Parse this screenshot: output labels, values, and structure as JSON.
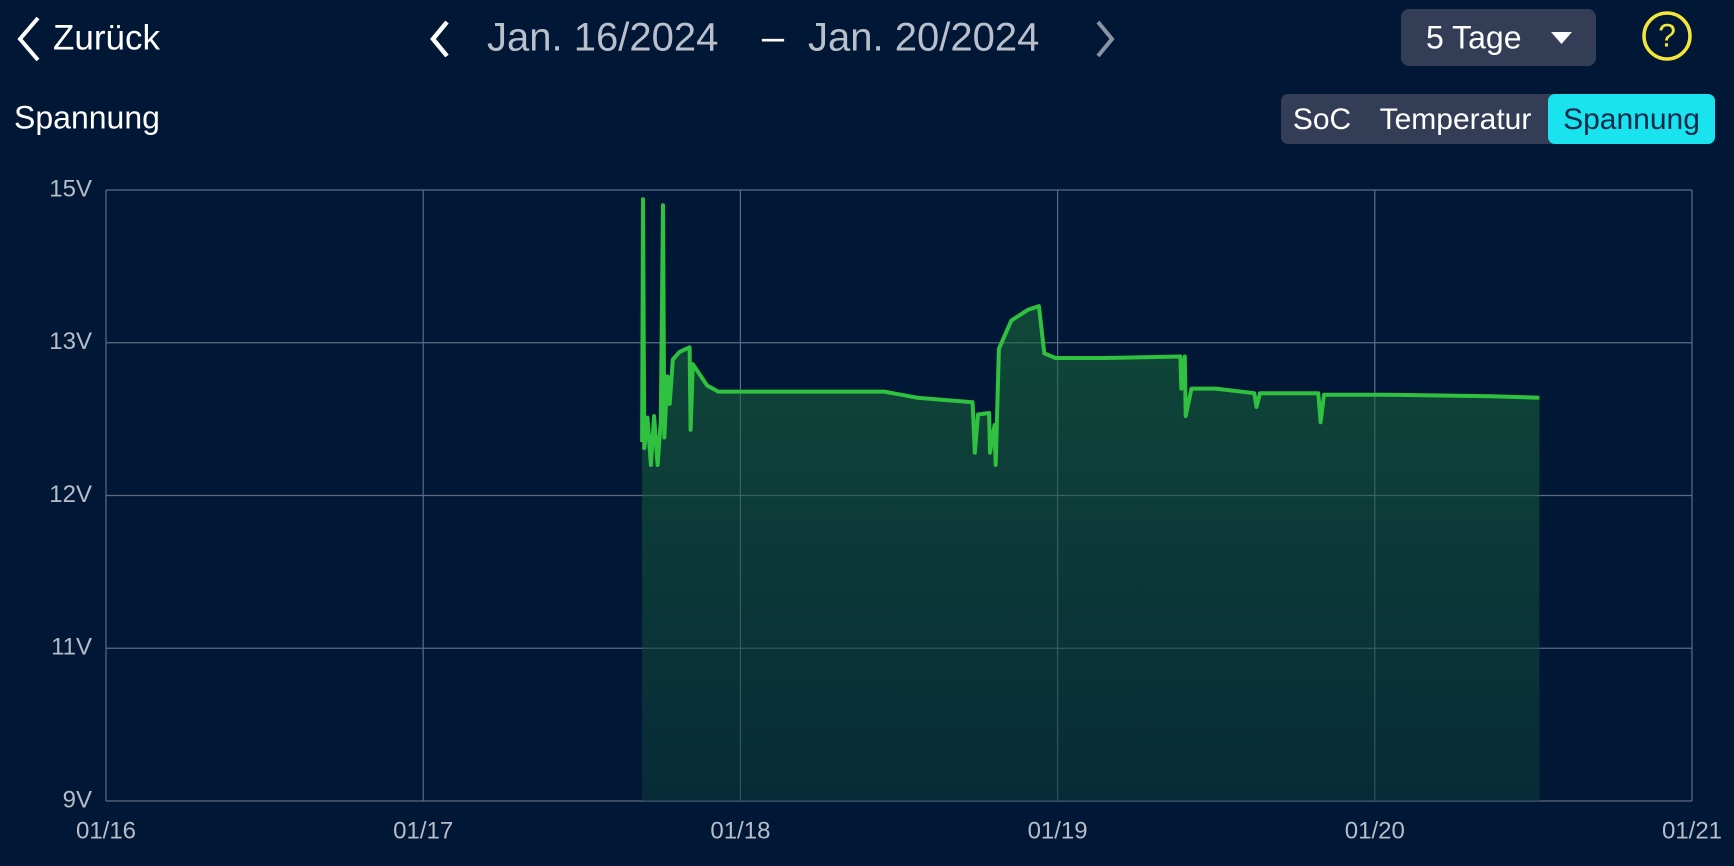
{
  "header": {
    "back": "Zurück",
    "date_from": "Jan. 16/2024",
    "date_separator": "–",
    "date_to": "Jan. 20/2024",
    "range_select": "5 Tage",
    "help": "?"
  },
  "tabs": [
    "SoC",
    "Temperatur",
    "Spannung"
  ],
  "active_tab": 2,
  "chart_data": {
    "type": "area",
    "title": "Spannung",
    "x": [
      17.69,
      17.693,
      17.697,
      17.707,
      17.718,
      17.728,
      17.739,
      17.749,
      17.756,
      17.76,
      17.77,
      17.777,
      17.787,
      17.808,
      17.84,
      17.843,
      17.85,
      17.895,
      17.93,
      18.105,
      18.453,
      18.557,
      18.732,
      18.739,
      18.749,
      18.784,
      18.787,
      18.801,
      18.805,
      18.815,
      18.854,
      18.906,
      18.941,
      18.958,
      18.993,
      19.15,
      19.387,
      19.39,
      19.401,
      19.404,
      19.422,
      19.498,
      19.62,
      19.627,
      19.638,
      19.822,
      19.829,
      19.84,
      20.021,
      20.369,
      20.519
    ],
    "series": [
      {
        "name": "Spannung",
        "color": "#2fc13f",
        "values": [
          12.35,
          14.88,
          12.31,
          12.51,
          12.2,
          12.52,
          12.2,
          12.49,
          14.8,
          12.38,
          12.78,
          12.6,
          12.89,
          12.94,
          12.97,
          12.43,
          12.86,
          12.72,
          12.68,
          12.68,
          12.68,
          12.64,
          12.61,
          12.28,
          12.53,
          12.54,
          12.28,
          12.46,
          12.2,
          12.96,
          13.29,
          13.43,
          13.48,
          12.93,
          12.9,
          12.9,
          12.91,
          12.7,
          12.91,
          12.52,
          12.7,
          12.7,
          12.67,
          12.58,
          12.67,
          12.67,
          12.48,
          12.66,
          12.66,
          12.65,
          12.64
        ]
      }
    ],
    "xlim": [
      16,
      21
    ],
    "xticks": [
      {
        "value": 16,
        "label": "01/16"
      },
      {
        "value": 17,
        "label": "01/17"
      },
      {
        "value": 18,
        "label": "01/18"
      },
      {
        "value": 19,
        "label": "01/19"
      },
      {
        "value": 20,
        "label": "01/20"
      },
      {
        "value": 21,
        "label": "01/21"
      }
    ],
    "ylim": [
      9,
      15
    ],
    "yticks": [
      {
        "value": 9,
        "label": "9V"
      },
      {
        "value": 11,
        "label": "11V"
      },
      {
        "value": 12,
        "label": "12V"
      },
      {
        "value": 13,
        "label": "13V"
      },
      {
        "value": 15,
        "label": "15V"
      }
    ],
    "grid": true
  }
}
